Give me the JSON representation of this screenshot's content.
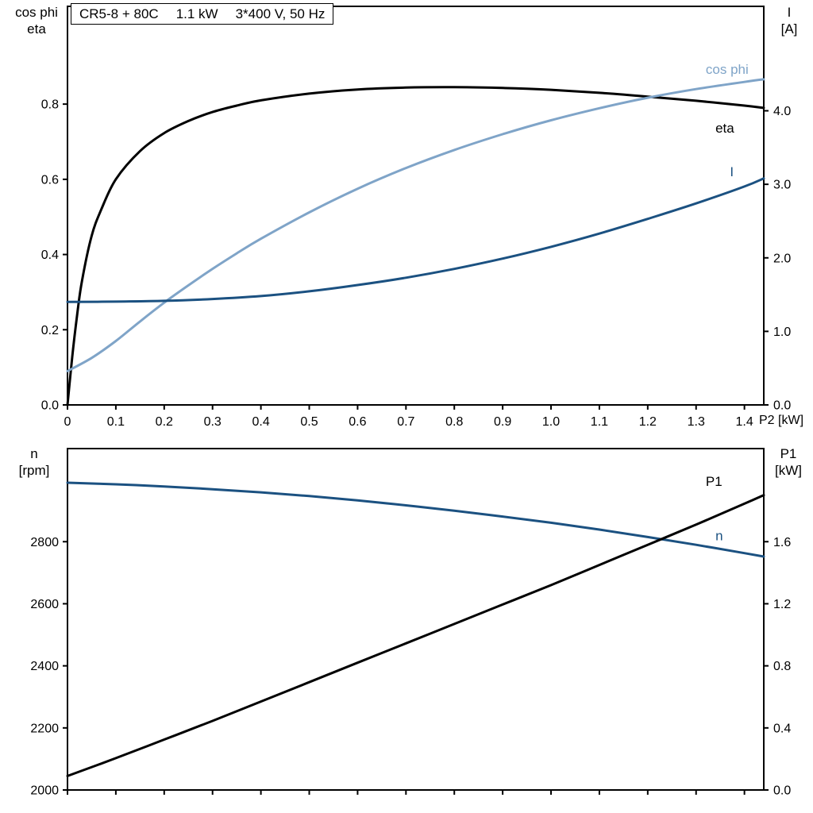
{
  "title_box": {
    "model": "CR5-8 + 80C",
    "power": "1.1 kW",
    "supply": "3*400 V, 50 Hz"
  },
  "colors": {
    "curve_black": "#000000",
    "curve_light_blue": "#7fa4c8",
    "curve_dark_blue": "#1b5181",
    "axis": "#000000",
    "background": "#ffffff"
  },
  "chart_data": [
    {
      "type": "line",
      "name": "motor-efficiency-current-chart",
      "x_label": "P2 [kW]",
      "xlim": [
        0,
        1.44
      ],
      "x_ticks": [
        0,
        0.1,
        0.2,
        0.3,
        0.4,
        0.5,
        0.6,
        0.7,
        0.8,
        0.9,
        1.0,
        1.1,
        1.2,
        1.3,
        1.4
      ],
      "x_tick_labels": [
        "0",
        "0.1",
        "0.2",
        "0.3",
        "0.4",
        "0.5",
        "0.6",
        "0.7",
        "0.8",
        "0.9",
        "1.0",
        "1.1",
        "1.2",
        "1.3",
        "1.4"
      ],
      "show_x_tick_labels": true,
      "grid": false,
      "legend": "labels-on-curves",
      "left_axis": {
        "label_lines": [
          "cos phi",
          "eta"
        ],
        "lim": [
          0,
          1.06
        ],
        "ticks": [
          0,
          0.2,
          0.4,
          0.6,
          0.8
        ],
        "tick_labels": [
          "0.0",
          "0.2",
          "0.4",
          "0.6",
          "0.8"
        ]
      },
      "right_axis": {
        "label_lines": [
          "I",
          "[A]"
        ],
        "lim": [
          0,
          5.42
        ],
        "ticks": [
          0,
          1,
          2,
          3,
          4
        ],
        "tick_labels": [
          "0.0",
          "1.0",
          "2.0",
          "3.0",
          "4.0"
        ]
      },
      "series": [
        {
          "id": "eta",
          "name": "eta",
          "axis": "left",
          "color": "#000000",
          "label_at": {
            "x": 1.34,
            "y": 0.724
          },
          "points": [
            [
              0,
              0
            ],
            [
              0.01,
              0.13
            ],
            [
              0.02,
              0.24
            ],
            [
              0.03,
              0.33
            ],
            [
              0.05,
              0.45
            ],
            [
              0.07,
              0.52
            ],
            [
              0.1,
              0.6
            ],
            [
              0.15,
              0.675
            ],
            [
              0.2,
              0.723
            ],
            [
              0.25,
              0.755
            ],
            [
              0.3,
              0.779
            ],
            [
              0.35,
              0.796
            ],
            [
              0.4,
              0.81
            ],
            [
              0.5,
              0.828
            ],
            [
              0.6,
              0.839
            ],
            [
              0.7,
              0.844
            ],
            [
              0.8,
              0.845
            ],
            [
              0.9,
              0.843
            ],
            [
              1.0,
              0.838
            ],
            [
              1.1,
              0.83
            ],
            [
              1.2,
              0.82
            ],
            [
              1.3,
              0.809
            ],
            [
              1.4,
              0.796
            ],
            [
              1.44,
              0.79
            ]
          ]
        },
        {
          "id": "cos-phi",
          "name": "cos phi",
          "axis": "left",
          "color": "#7fa4c8",
          "label_at": {
            "x": 1.32,
            "y": 0.88
          },
          "points": [
            [
              0,
              0.09
            ],
            [
              0.05,
              0.125
            ],
            [
              0.1,
              0.17
            ],
            [
              0.15,
              0.222
            ],
            [
              0.2,
              0.272
            ],
            [
              0.25,
              0.318
            ],
            [
              0.3,
              0.362
            ],
            [
              0.35,
              0.403
            ],
            [
              0.4,
              0.442
            ],
            [
              0.5,
              0.512
            ],
            [
              0.6,
              0.575
            ],
            [
              0.7,
              0.63
            ],
            [
              0.8,
              0.678
            ],
            [
              0.9,
              0.72
            ],
            [
              1.0,
              0.757
            ],
            [
              1.1,
              0.789
            ],
            [
              1.2,
              0.817
            ],
            [
              1.3,
              0.84
            ],
            [
              1.4,
              0.859
            ],
            [
              1.44,
              0.866
            ]
          ]
        },
        {
          "id": "current",
          "name": "I",
          "axis": "right",
          "color": "#1b5181",
          "label_at": {
            "x": 1.37,
            "y": 3.11
          },
          "points": [
            [
              0,
              1.4
            ],
            [
              0.1,
              1.405
            ],
            [
              0.2,
              1.415
            ],
            [
              0.3,
              1.44
            ],
            [
              0.4,
              1.48
            ],
            [
              0.5,
              1.545
            ],
            [
              0.6,
              1.63
            ],
            [
              0.7,
              1.73
            ],
            [
              0.8,
              1.85
            ],
            [
              0.9,
              1.99
            ],
            [
              1.0,
              2.15
            ],
            [
              1.1,
              2.33
            ],
            [
              1.2,
              2.53
            ],
            [
              1.3,
              2.74
            ],
            [
              1.4,
              2.97
            ],
            [
              1.44,
              3.08
            ]
          ]
        }
      ]
    },
    {
      "type": "line",
      "name": "speed-input-power-chart",
      "x_label": "",
      "xlim": [
        0,
        1.44
      ],
      "x_ticks": [
        0,
        0.1,
        0.2,
        0.3,
        0.4,
        0.5,
        0.6,
        0.7,
        0.8,
        0.9,
        1.0,
        1.1,
        1.2,
        1.3,
        1.4
      ],
      "x_tick_labels": [],
      "show_x_tick_labels": false,
      "grid": false,
      "legend": "labels-on-curves",
      "left_axis": {
        "label_lines": [
          "n",
          "[rpm]"
        ],
        "lim": [
          2000,
          3100
        ],
        "ticks": [
          2000,
          2200,
          2400,
          2600,
          2800
        ],
        "tick_labels": [
          "2000",
          "2200",
          "2400",
          "2600",
          "2800"
        ]
      },
      "right_axis": {
        "label_lines": [
          "P1",
          "[kW]"
        ],
        "lim": [
          0,
          2.2
        ],
        "ticks": [
          0,
          0.4,
          0.8,
          1.2,
          1.6
        ],
        "tick_labels": [
          "0.0",
          "0.4",
          "0.8",
          "1.2",
          "1.6"
        ]
      },
      "series": [
        {
          "id": "speed",
          "name": "n",
          "axis": "left",
          "color": "#1b5181",
          "label_at": {
            "x": 1.34,
            "y": 2805
          },
          "points": [
            [
              0,
              2990
            ],
            [
              0.1,
              2985
            ],
            [
              0.2,
              2978
            ],
            [
              0.3,
              2969
            ],
            [
              0.4,
              2959
            ],
            [
              0.5,
              2947
            ],
            [
              0.6,
              2933
            ],
            [
              0.7,
              2917
            ],
            [
              0.8,
              2900
            ],
            [
              0.9,
              2881
            ],
            [
              1.0,
              2861
            ],
            [
              1.1,
              2839
            ],
            [
              1.2,
              2815
            ],
            [
              1.3,
              2790
            ],
            [
              1.4,
              2763
            ],
            [
              1.44,
              2752
            ]
          ]
        },
        {
          "id": "p1",
          "name": "P1",
          "axis": "right",
          "color": "#000000",
          "label_at": {
            "x": 1.32,
            "y": 1.96
          },
          "points": [
            [
              0,
              0.09
            ],
            [
              0.1,
              0.205
            ],
            [
              0.2,
              0.325
            ],
            [
              0.3,
              0.445
            ],
            [
              0.4,
              0.57
            ],
            [
              0.5,
              0.695
            ],
            [
              0.6,
              0.82
            ],
            [
              0.7,
              0.945
            ],
            [
              0.8,
              1.07
            ],
            [
              0.9,
              1.195
            ],
            [
              1.0,
              1.32
            ],
            [
              1.1,
              1.45
            ],
            [
              1.2,
              1.58
            ],
            [
              1.3,
              1.71
            ],
            [
              1.4,
              1.845
            ],
            [
              1.44,
              1.9
            ]
          ]
        }
      ]
    }
  ]
}
